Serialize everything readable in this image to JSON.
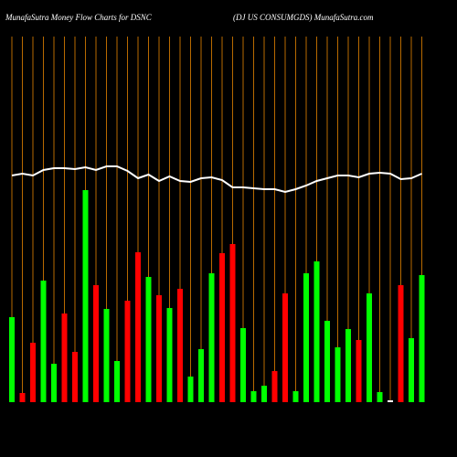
{
  "chart_data": {
    "type": "bar",
    "title": "MunafaSutra  Money Flow  Charts for DSNC",
    "subtitle": "(DJ US CONSUMGDS) MunafaSutra.com",
    "categories": [
      null,
      null,
      null,
      null,
      null,
      null,
      null,
      null,
      null,
      null,
      null,
      null,
      null,
      null,
      null,
      null,
      null,
      null,
      null,
      null,
      null,
      null,
      null,
      null,
      null,
      null,
      null,
      null,
      null,
      null,
      null,
      null,
      null,
      null,
      null,
      null,
      null,
      null,
      null,
      null
    ],
    "ylim": [
      0,
      400
    ],
    "series": [
      {
        "type": "bar",
        "colors": [
          "#00ff00",
          "#ff0000",
          "#ff0000",
          "#00ff00",
          "#00ff00",
          "#ff0000",
          "#ff0000",
          "#00ff00",
          "#ff0000",
          "#00ff00",
          "#00ff00",
          "#ff0000",
          "#ff0000",
          "#00ff00",
          "#ff0000",
          "#00ff00",
          "#ff0000",
          "#00ff00",
          "#00ff00",
          "#00ff00",
          "#ff0000",
          "#ff0000",
          "#00ff00",
          "#00ff00",
          "#00ff00",
          "#ff0000",
          "#ff0000",
          "#00ff00",
          "#00ff00",
          "#00ff00",
          "#00ff00",
          "#00ff00",
          "#00ff00",
          "#ff0000",
          "#00ff00",
          "#00ff00",
          "#ffffff",
          "#ff0000",
          "#00ff00",
          "#00ff00"
        ],
        "values": [
          93,
          10,
          65,
          133,
          42,
          97,
          55,
          232,
          128,
          102,
          45,
          111,
          164,
          137,
          117,
          103,
          124,
          28,
          58,
          141,
          163,
          173,
          81,
          12,
          18,
          34,
          119,
          12,
          141,
          154,
          89,
          60,
          80,
          68,
          119,
          11,
          2,
          128,
          70,
          139
        ]
      },
      {
        "type": "line",
        "color": "#ffffff",
        "values": [
          248,
          250,
          248,
          254,
          256,
          256,
          255,
          257,
          254,
          258,
          258,
          253,
          245,
          249,
          242,
          247,
          242,
          241,
          245,
          246,
          243,
          235,
          235,
          234,
          233,
          233,
          230,
          233,
          237,
          242,
          245,
          248,
          248,
          246,
          250,
          251,
          250,
          244,
          245,
          250
        ]
      }
    ]
  }
}
